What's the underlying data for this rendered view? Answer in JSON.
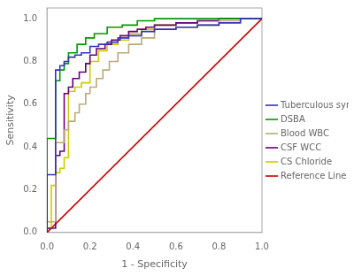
{
  "chart_data": {
    "type": "line",
    "xlabel": "1 - Specificity",
    "ylabel": "Sensitivity",
    "xlim": [
      0.0,
      1.0
    ],
    "ylim": [
      0.0,
      1.05
    ],
    "xticks": [
      {
        "value": 0.0,
        "label": "0.0"
      },
      0.2,
      0.4,
      0.6,
      0.8,
      {
        "value": 1.0,
        "label": "1.0"
      }
    ],
    "yticks": [
      {
        "value": 0.0,
        "label": "0.0"
      },
      0.2,
      0.4,
      0.6,
      0.8,
      {
        "value": 1.0,
        "label": "1.0"
      }
    ],
    "grid": false,
    "legend": "right",
    "series": [
      {
        "name": "Tuberculous symptoms",
        "color": "#3333bb",
        "x": [
          0.0,
          0.0,
          0.04,
          0.04,
          0.06,
          0.06,
          0.08,
          0.08,
          0.1,
          0.1,
          0.13,
          0.13,
          0.16,
          0.16,
          0.2,
          0.2,
          0.24,
          0.24,
          0.28,
          0.28,
          0.33,
          0.33,
          0.38,
          0.38,
          0.44,
          0.44,
          0.5,
          0.5,
          0.6,
          0.6,
          0.7,
          0.7,
          0.8,
          0.8,
          0.9,
          0.9,
          1.0
        ],
        "values": [
          0.0,
          0.27,
          0.27,
          0.76,
          0.76,
          0.78,
          0.78,
          0.8,
          0.8,
          0.82,
          0.82,
          0.83,
          0.83,
          0.84,
          0.84,
          0.87,
          0.87,
          0.88,
          0.88,
          0.89,
          0.89,
          0.91,
          0.91,
          0.92,
          0.92,
          0.94,
          0.94,
          0.95,
          0.95,
          0.96,
          0.96,
          0.97,
          0.97,
          0.98,
          0.98,
          1.0,
          1.0
        ]
      },
      {
        "name": "DSBA",
        "color": "#009900",
        "x": [
          0.0,
          0.0,
          0.04,
          0.04,
          0.06,
          0.06,
          0.08,
          0.08,
          0.1,
          0.1,
          0.14,
          0.14,
          0.18,
          0.18,
          0.22,
          0.22,
          0.28,
          0.28,
          0.35,
          0.35,
          0.42,
          0.42,
          0.5,
          0.5,
          0.6,
          0.6,
          0.7,
          0.7,
          0.8,
          0.8,
          0.9,
          0.9,
          1.0
        ],
        "values": [
          0.0,
          0.44,
          0.44,
          0.71,
          0.71,
          0.76,
          0.76,
          0.79,
          0.79,
          0.84,
          0.84,
          0.88,
          0.88,
          0.91,
          0.91,
          0.93,
          0.93,
          0.96,
          0.96,
          0.97,
          0.97,
          0.99,
          0.99,
          1.0,
          1.0,
          1.0,
          1.0,
          1.0,
          1.0,
          1.0,
          1.0,
          1.0,
          1.0
        ]
      },
      {
        "name": "Blood WBC",
        "color": "#bbaa77",
        "x": [
          0.0,
          0.0,
          0.04,
          0.04,
          0.08,
          0.08,
          0.1,
          0.1,
          0.13,
          0.13,
          0.15,
          0.15,
          0.18,
          0.18,
          0.2,
          0.2,
          0.23,
          0.23,
          0.26,
          0.26,
          0.29,
          0.29,
          0.33,
          0.33,
          0.38,
          0.38,
          0.44,
          0.44,
          0.5,
          0.5,
          0.6,
          0.6,
          0.7,
          0.7,
          0.8,
          0.8,
          0.9,
          0.9,
          1.0
        ],
        "values": [
          0.0,
          0.05,
          0.05,
          0.42,
          0.42,
          0.48,
          0.48,
          0.52,
          0.52,
          0.56,
          0.56,
          0.6,
          0.6,
          0.65,
          0.65,
          0.68,
          0.68,
          0.72,
          0.72,
          0.76,
          0.76,
          0.8,
          0.8,
          0.84,
          0.84,
          0.88,
          0.88,
          0.91,
          0.91,
          0.95,
          0.95,
          0.96,
          0.96,
          0.97,
          0.97,
          0.99,
          0.99,
          1.0,
          1.0
        ]
      },
      {
        "name": "CSF WCC",
        "color": "#660077",
        "x": [
          0.0,
          0.0,
          0.04,
          0.04,
          0.06,
          0.06,
          0.08,
          0.08,
          0.1,
          0.1,
          0.12,
          0.12,
          0.15,
          0.15,
          0.18,
          0.18,
          0.2,
          0.2,
          0.23,
          0.23,
          0.27,
          0.27,
          0.3,
          0.3,
          0.34,
          0.34,
          0.38,
          0.38,
          0.42,
          0.42,
          0.46,
          0.46,
          0.5,
          0.5,
          0.6,
          0.6,
          0.7,
          0.7,
          0.8,
          0.8,
          0.9,
          0.9,
          1.0
        ],
        "values": [
          0.0,
          0.02,
          0.02,
          0.36,
          0.36,
          0.38,
          0.38,
          0.65,
          0.65,
          0.68,
          0.68,
          0.72,
          0.72,
          0.75,
          0.75,
          0.79,
          0.79,
          0.83,
          0.83,
          0.86,
          0.86,
          0.88,
          0.88,
          0.9,
          0.9,
          0.92,
          0.92,
          0.94,
          0.94,
          0.95,
          0.95,
          0.96,
          0.96,
          0.97,
          0.97,
          0.98,
          0.98,
          0.99,
          0.99,
          1.0,
          1.0,
          1.0,
          1.0
        ]
      },
      {
        "name": "CS Chloride",
        "color": "#cccc00",
        "x": [
          0.0,
          0.0,
          0.02,
          0.02,
          0.04,
          0.04,
          0.06,
          0.06,
          0.08,
          0.08,
          0.1,
          0.1,
          0.13,
          0.13,
          0.16,
          0.16,
          0.2,
          0.2,
          0.24,
          0.24,
          0.28,
          0.28,
          0.33,
          0.33,
          0.38,
          0.38,
          0.44,
          0.44,
          0.5,
          0.5,
          0.6,
          0.6,
          0.7,
          0.7,
          0.8,
          0.8,
          0.9,
          0.9,
          1.0
        ],
        "values": [
          0.0,
          0.02,
          0.02,
          0.22,
          0.22,
          0.28,
          0.28,
          0.3,
          0.3,
          0.35,
          0.35,
          0.66,
          0.66,
          0.68,
          0.68,
          0.7,
          0.7,
          0.8,
          0.8,
          0.85,
          0.85,
          0.88,
          0.88,
          0.9,
          0.9,
          0.93,
          0.93,
          0.95,
          0.95,
          0.97,
          0.97,
          0.98,
          0.98,
          0.99,
          0.99,
          1.0,
          1.0,
          1.0,
          1.0
        ]
      },
      {
        "name": "Reference Line",
        "color": "#cc0000",
        "x": [
          0,
          1
        ],
        "values": [
          0,
          1
        ]
      }
    ]
  }
}
